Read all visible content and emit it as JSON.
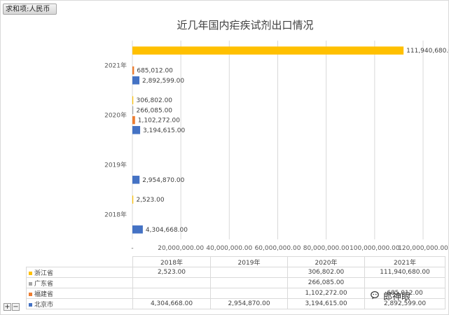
{
  "filter_button": {
    "label": "求和项:人民币"
  },
  "chart_data": {
    "type": "bar",
    "orientation": "horizontal",
    "title": "近几年国内疟疾试剂出口情况",
    "categories": [
      "2018年",
      "2019年",
      "2020年",
      "2021年"
    ],
    "series": [
      {
        "name": "北京市",
        "color": "#4472c4",
        "values": [
          4304668,
          2954870,
          3194615,
          2892599
        ],
        "labels": [
          "4,304,668.00",
          "2,954,870.00",
          "3,194,615.00",
          "2,892,599.00"
        ]
      },
      {
        "name": "福建省",
        "color": "#ed7d31",
        "values": [
          null,
          null,
          1102272,
          685012
        ],
        "labels": [
          "",
          "",
          "1,102,272.00",
          "685,012.00"
        ]
      },
      {
        "name": "广东省",
        "color": "#a5a5a5",
        "values": [
          null,
          null,
          266085,
          null
        ],
        "labels": [
          "",
          "",
          "266,085.00",
          ""
        ]
      },
      {
        "name": "浙江省",
        "color": "#ffc000",
        "values": [
          2523,
          null,
          306802,
          111940680
        ],
        "labels": [
          "2,523.00",
          "",
          "306,802.00",
          "111,940,680.00"
        ]
      }
    ],
    "xlim": [
      0,
      120000000
    ],
    "xticks": [
      "-",
      "20,000,000.00",
      "40,000,000.00",
      "60,000,000.00",
      "80,000,000.00",
      "100,000,000.00",
      "120,000,000.00"
    ],
    "grid": true,
    "data_table": {
      "columns": [
        "2018年",
        "2019年",
        "2020年",
        "2021年"
      ],
      "rows": [
        {
          "name": "浙江省",
          "color": "#ffc000",
          "cells": [
            "2,523.00",
            "",
            "306,802.00",
            "111,940,680.00"
          ]
        },
        {
          "name": "广东省",
          "color": "#a5a5a5",
          "cells": [
            "",
            "",
            "266,085.00",
            ""
          ]
        },
        {
          "name": "福建省",
          "color": "#ed7d31",
          "cells": [
            "",
            "",
            "1,102,272.00",
            "685,012.00"
          ]
        },
        {
          "name": "北京市",
          "color": "#4472c4",
          "cells": [
            "4,304,668.00",
            "2,954,870.00",
            "3,194,615.00",
            "2,892,599.00"
          ]
        }
      ]
    }
  },
  "zoom": {
    "plus": "+",
    "minus": "−"
  },
  "watermark": {
    "text": "郎神眼"
  }
}
